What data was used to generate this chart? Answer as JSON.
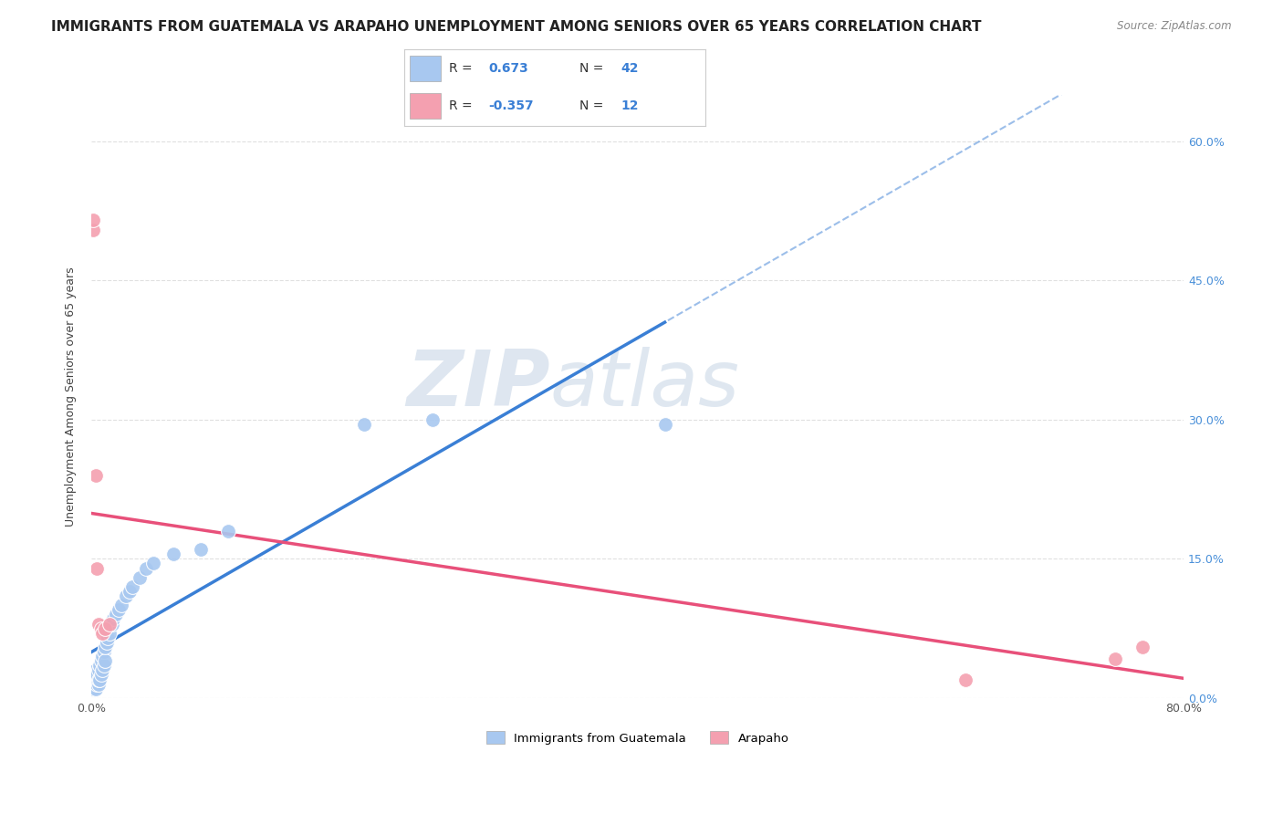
{
  "title": "IMMIGRANTS FROM GUATEMALA VS ARAPAHO UNEMPLOYMENT AMONG SENIORS OVER 65 YEARS CORRELATION CHART",
  "source": "Source: ZipAtlas.com",
  "ylabel": "Unemployment Among Seniors over 65 years",
  "watermark_zip": "ZIP",
  "watermark_atlas": "atlas",
  "blue_scatter_x": [
    0.001,
    0.001,
    0.002,
    0.002,
    0.003,
    0.003,
    0.003,
    0.004,
    0.004,
    0.005,
    0.005,
    0.005,
    0.006,
    0.006,
    0.007,
    0.007,
    0.008,
    0.008,
    0.009,
    0.009,
    0.01,
    0.01,
    0.011,
    0.012,
    0.013,
    0.015,
    0.016,
    0.018,
    0.02,
    0.022,
    0.025,
    0.028,
    0.03,
    0.035,
    0.04,
    0.045,
    0.06,
    0.08,
    0.1,
    0.2,
    0.25,
    0.42
  ],
  "blue_scatter_y": [
    0.01,
    0.02,
    0.015,
    0.025,
    0.01,
    0.02,
    0.03,
    0.015,
    0.025,
    0.015,
    0.02,
    0.03,
    0.02,
    0.035,
    0.025,
    0.04,
    0.03,
    0.045,
    0.035,
    0.05,
    0.04,
    0.055,
    0.06,
    0.065,
    0.07,
    0.08,
    0.085,
    0.09,
    0.095,
    0.1,
    0.11,
    0.115,
    0.12,
    0.13,
    0.14,
    0.145,
    0.155,
    0.16,
    0.18,
    0.295,
    0.3,
    0.295
  ],
  "pink_scatter_x": [
    0.001,
    0.001,
    0.003,
    0.004,
    0.005,
    0.007,
    0.008,
    0.01,
    0.013,
    0.64,
    0.75,
    0.77
  ],
  "pink_scatter_y": [
    0.505,
    0.515,
    0.24,
    0.14,
    0.08,
    0.075,
    0.07,
    0.075,
    0.08,
    0.02,
    0.042,
    0.055
  ],
  "blue_color": "#a8c8f0",
  "pink_color": "#f4a0b0",
  "blue_line_color": "#3a7fd5",
  "pink_line_color": "#e8507a",
  "bg_color": "#ffffff",
  "grid_color": "#e0e0e0",
  "title_fontsize": 11,
  "axis_label_fontsize": 9,
  "tick_fontsize": 9,
  "right_tick_color": "#4a90d9",
  "xlim": [
    0.0,
    0.8
  ],
  "ylim": [
    0.0,
    0.65
  ],
  "right_yticks": [
    0.0,
    0.15,
    0.3,
    0.45,
    0.6
  ],
  "right_yticklabels": [
    "0.0%",
    "15.0%",
    "30.0%",
    "45.0%",
    "60.0%"
  ],
  "xticks": [
    0.0,
    0.1,
    0.2,
    0.3,
    0.4,
    0.5,
    0.6,
    0.7,
    0.8
  ],
  "xticklabels": [
    "0.0%",
    "",
    "",
    "",
    "",
    "",
    "",
    "",
    "80.0%"
  ],
  "yticks": [
    0.0,
    0.15,
    0.3,
    0.45,
    0.6
  ],
  "yticklabels": [
    "",
    "",
    "",
    "",
    ""
  ],
  "legend_blue_r": "0.673",
  "legend_blue_n": "42",
  "legend_pink_r": "-0.357",
  "legend_pink_n": "12",
  "label_guatemala": "Immigrants from Guatemala",
  "label_arapaho": "Arapaho"
}
